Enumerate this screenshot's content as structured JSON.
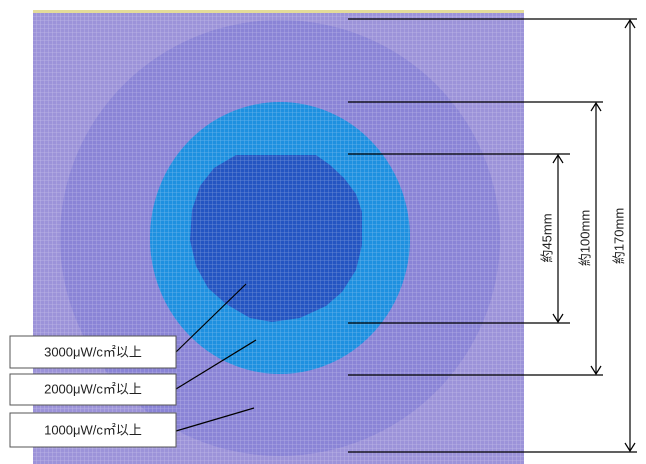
{
  "colors": {
    "background": "#ffffff",
    "outer_field": "#9C93D9",
    "zone_1000": "#8A84D6",
    "zone_2000": "#1E90E0",
    "zone_3000": "#2455C2",
    "grid_line": "#FFFFFF",
    "top_strip": "#E3DC9A",
    "lines": "#000000"
  },
  "legend": {
    "l3000": "3000μW/c㎡以上",
    "l2000": "2000μW/c㎡以上",
    "l1000": "1000μW/c㎡以上"
  },
  "dimensions": {
    "d45": "約45mm",
    "d100": "約100mm",
    "d170": "約170mm"
  }
}
